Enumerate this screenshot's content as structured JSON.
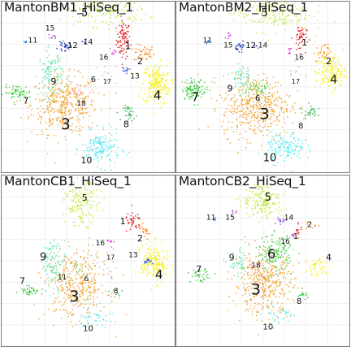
{
  "colors": {
    "1": "#e31a1c",
    "2": "#ff7f00",
    "3": "#f0a030",
    "4": "#f5ee1a",
    "5": "#c2e84a",
    "6": "#4dd34d",
    "7": "#3cc93c",
    "8": "#33b84a",
    "9": "#5fe3a8",
    "10": "#4fe8f0",
    "11": "#1f78d4",
    "12": "#1f3fb4",
    "13": "#2c52d9",
    "14": "#8d4fd9",
    "15": "#b43fd6",
    "16": "#e03fd6",
    "17": "#d8a8d0",
    "18": "#ff9f9f"
  },
  "chart_data": [
    {
      "type": "scatter",
      "title": "MantonBM1_HiSeq_1",
      "xlim": [
        0,
        100
      ],
      "ylim": [
        0,
        100
      ],
      "grid": true,
      "clusters": [
        {
          "id": "1",
          "x": 70,
          "y": 78,
          "n": 90,
          "sx": 2.0,
          "sy": 5.5
        },
        {
          "id": "2",
          "x": 82,
          "y": 70,
          "n": 40,
          "sx": 3.0,
          "sy": 2.5
        },
        {
          "id": "3",
          "x": 36,
          "y": 40,
          "n": 420,
          "sx": 9.5,
          "sy": 8.5
        },
        {
          "id": "4",
          "x": 89,
          "y": 52,
          "n": 240,
          "sx": 4.0,
          "sy": 6.0
        },
        {
          "id": "5",
          "x": 60,
          "y": 96,
          "n": 200,
          "sx": 12.0,
          "sy": 5.0
        },
        {
          "id": "7",
          "x": 9,
          "y": 47,
          "n": 60,
          "sx": 4.0,
          "sy": 2.2
        },
        {
          "id": "8",
          "x": 74,
          "y": 35,
          "n": 35,
          "sx": 2.0,
          "sy": 2.2
        },
        {
          "id": "9",
          "x": 28,
          "y": 58,
          "n": 110,
          "sx": 3.5,
          "sy": 7.0
        },
        {
          "id": "10",
          "x": 57,
          "y": 14,
          "n": 160,
          "sx": 5.5,
          "sy": 5.0
        },
        {
          "id": "11",
          "x": 14,
          "y": 77,
          "n": 5,
          "sx": 0.6,
          "sy": 0.5
        },
        {
          "id": "12",
          "x": 36,
          "y": 74,
          "n": 30,
          "sx": 1.8,
          "sy": 1.2
        },
        {
          "id": "13",
          "x": 71,
          "y": 60,
          "n": 12,
          "sx": 1.2,
          "sy": 1.0
        },
        {
          "id": "14",
          "x": 48,
          "y": 77,
          "n": 10,
          "sx": 1.5,
          "sy": 1.0
        },
        {
          "id": "15",
          "x": 30,
          "y": 80,
          "n": 8,
          "sx": 1.0,
          "sy": 0.8
        },
        {
          "id": "16",
          "x": 64,
          "y": 71,
          "n": 10,
          "sx": 1.0,
          "sy": 1.0
        },
        {
          "id": "17",
          "x": 60,
          "y": 58,
          "n": 10,
          "sx": 3.0,
          "sy": 3.0
        },
        {
          "id": "18",
          "x": 44,
          "y": 48,
          "n": 18,
          "sx": 2.0,
          "sy": 2.0
        }
      ],
      "labels": [
        {
          "text": "1",
          "x": 73,
          "y": 74,
          "size": 12
        },
        {
          "text": "2",
          "x": 80,
          "y": 65,
          "size": 11
        },
        {
          "text": "3",
          "x": 37,
          "y": 28,
          "size": 19
        },
        {
          "text": "4",
          "x": 90,
          "y": 45,
          "size": 15
        },
        {
          "text": "5",
          "x": 48,
          "y": 93,
          "size": 13
        },
        {
          "text": "6",
          "x": 53,
          "y": 54,
          "size": 10
        },
        {
          "text": "7",
          "x": 14,
          "y": 42,
          "size": 11
        },
        {
          "text": "8",
          "x": 72,
          "y": 28,
          "size": 11
        },
        {
          "text": "9",
          "x": 30,
          "y": 53,
          "size": 11
        },
        {
          "text": "10",
          "x": 49,
          "y": 7,
          "size": 11
        },
        {
          "text": "11",
          "x": 18,
          "y": 77,
          "size": 9
        },
        {
          "text": "12",
          "x": 41,
          "y": 74,
          "size": 10
        },
        {
          "text": "13",
          "x": 77,
          "y": 56,
          "size": 9
        },
        {
          "text": "14",
          "x": 50,
          "y": 76,
          "size": 9
        },
        {
          "text": "15",
          "x": 28,
          "y": 84,
          "size": 9
        },
        {
          "text": "16",
          "x": 59,
          "y": 67,
          "size": 9
        },
        {
          "text": "17",
          "x": 61,
          "y": 53,
          "size": 8
        },
        {
          "text": "18",
          "x": 46,
          "y": 40,
          "size": 9
        }
      ]
    },
    {
      "type": "scatter",
      "title": "MantonBM2_HiSeq_1",
      "xlim": [
        0,
        100
      ],
      "ylim": [
        0,
        100
      ],
      "grid": true,
      "clusters": [
        {
          "id": "1",
          "x": 71,
          "y": 79,
          "n": 50,
          "sx": 2.0,
          "sy": 4.0
        },
        {
          "id": "2",
          "x": 84,
          "y": 70,
          "n": 30,
          "sx": 2.5,
          "sy": 2.5
        },
        {
          "id": "3",
          "x": 46,
          "y": 39,
          "n": 460,
          "sx": 10.0,
          "sy": 9.0
        },
        {
          "id": "4",
          "x": 89,
          "y": 59,
          "n": 180,
          "sx": 4.5,
          "sy": 5.0
        },
        {
          "id": "5",
          "x": 55,
          "y": 94,
          "n": 220,
          "sx": 11.0,
          "sy": 5.5
        },
        {
          "id": "6",
          "x": 48,
          "y": 50,
          "n": 40,
          "sx": 3.0,
          "sy": 2.0
        },
        {
          "id": "7",
          "x": 10,
          "y": 49,
          "n": 110,
          "sx": 3.5,
          "sy": 3.0
        },
        {
          "id": "8",
          "x": 77,
          "y": 36,
          "n": 30,
          "sx": 2.0,
          "sy": 2.0
        },
        {
          "id": "9",
          "x": 37,
          "y": 55,
          "n": 60,
          "sx": 3.0,
          "sy": 5.0
        },
        {
          "id": "10",
          "x": 63,
          "y": 15,
          "n": 140,
          "sx": 5.5,
          "sy": 4.5
        },
        {
          "id": "11",
          "x": 18,
          "y": 77,
          "n": 5,
          "sx": 0.6,
          "sy": 0.5
        },
        {
          "id": "12",
          "x": 37,
          "y": 74,
          "n": 25,
          "sx": 1.5,
          "sy": 1.2
        },
        {
          "id": "14",
          "x": 46,
          "y": 74,
          "n": 6,
          "sx": 1.0,
          "sy": 0.8
        },
        {
          "id": "15",
          "x": 30,
          "y": 80,
          "n": 8,
          "sx": 1.0,
          "sy": 0.8
        },
        {
          "id": "16",
          "x": 65,
          "y": 71,
          "n": 8,
          "sx": 1.0,
          "sy": 1.0
        },
        {
          "id": "17",
          "x": 70,
          "y": 58,
          "n": 10,
          "sx": 3.0,
          "sy": 3.0
        }
      ],
      "labels": [
        {
          "text": "1",
          "x": 74,
          "y": 76,
          "size": 11
        },
        {
          "text": "2",
          "x": 88,
          "y": 65,
          "size": 11
        },
        {
          "text": "3",
          "x": 51,
          "y": 34,
          "size": 19
        },
        {
          "text": "4",
          "x": 91,
          "y": 54,
          "size": 14
        },
        {
          "text": "5",
          "x": 51,
          "y": 93,
          "size": 13
        },
        {
          "text": "6",
          "x": 47,
          "y": 43,
          "size": 10
        },
        {
          "text": "7",
          "x": 11,
          "y": 44,
          "size": 15
        },
        {
          "text": "8",
          "x": 72,
          "y": 27,
          "size": 10
        },
        {
          "text": "9",
          "x": 31,
          "y": 49,
          "size": 11
        },
        {
          "text": "10",
          "x": 54,
          "y": 8,
          "size": 13
        },
        {
          "text": "11",
          "x": 18,
          "y": 77,
          "size": 9
        },
        {
          "text": "12",
          "x": 43,
          "y": 74,
          "size": 10
        },
        {
          "text": "14",
          "x": 50,
          "y": 74,
          "size": 9
        },
        {
          "text": "15",
          "x": 30,
          "y": 74,
          "size": 9
        },
        {
          "text": "16",
          "x": 71,
          "y": 67,
          "size": 9
        },
        {
          "text": "17",
          "x": 69,
          "y": 53,
          "size": 8
        }
      ]
    },
    {
      "type": "scatter",
      "title": "MantonCB1_HiSeq_1",
      "xlim": [
        0,
        100
      ],
      "ylim": [
        0,
        100
      ],
      "grid": true,
      "clusters": [
        {
          "id": "1",
          "x": 76,
          "y": 73,
          "n": 40,
          "sx": 2.5,
          "sy": 3.0
        },
        {
          "id": "2",
          "x": 82,
          "y": 67,
          "n": 20,
          "sx": 2.0,
          "sy": 2.0
        },
        {
          "id": "3",
          "x": 43,
          "y": 36,
          "n": 380,
          "sx": 9.0,
          "sy": 10.0
        },
        {
          "id": "4",
          "x": 88,
          "y": 49,
          "n": 200,
          "sx": 4.0,
          "sy": 5.5
        },
        {
          "id": "5",
          "x": 46,
          "y": 84,
          "n": 170,
          "sx": 5.0,
          "sy": 6.0
        },
        {
          "id": "6",
          "x": 44,
          "y": 47,
          "n": 10,
          "sx": 2.0,
          "sy": 2.0
        },
        {
          "id": "7",
          "x": 16,
          "y": 33,
          "n": 40,
          "sx": 3.0,
          "sy": 1.5
        },
        {
          "id": "8",
          "x": 66,
          "y": 30,
          "n": 8,
          "sx": 2.0,
          "sy": 2.0
        },
        {
          "id": "9",
          "x": 30,
          "y": 49,
          "n": 110,
          "sx": 3.5,
          "sy": 7.0
        },
        {
          "id": "10",
          "x": 54,
          "y": 18,
          "n": 40,
          "sx": 5.0,
          "sy": 4.0
        },
        {
          "id": "13",
          "x": 84,
          "y": 50,
          "n": 15,
          "sx": 1.5,
          "sy": 1.0
        },
        {
          "id": "16",
          "x": 63,
          "y": 62,
          "n": 10,
          "sx": 1.2,
          "sy": 1.2
        },
        {
          "id": "17",
          "x": 60,
          "y": 47,
          "n": 10,
          "sx": 3.0,
          "sy": 3.0
        }
      ],
      "labels": [
        {
          "text": "1",
          "x": 70,
          "y": 73,
          "size": 11
        },
        {
          "text": "2",
          "x": 80,
          "y": 63,
          "size": 11
        },
        {
          "text": "3",
          "x": 42,
          "y": 29,
          "size": 19
        },
        {
          "text": "4",
          "x": 91,
          "y": 42,
          "size": 15
        },
        {
          "text": "5",
          "x": 48,
          "y": 87,
          "size": 11
        },
        {
          "text": "6",
          "x": 49,
          "y": 39,
          "size": 9
        },
        {
          "text": "7",
          "x": 12,
          "y": 38,
          "size": 11
        },
        {
          "text": "8",
          "x": 66,
          "y": 32,
          "size": 9
        },
        {
          "text": "9",
          "x": 24,
          "y": 52,
          "size": 13
        },
        {
          "text": "10",
          "x": 50,
          "y": 10,
          "size": 10
        },
        {
          "text": "11",
          "x": 35,
          "y": 40,
          "size": 9
        },
        {
          "text": "13",
          "x": 76,
          "y": 53,
          "size": 9
        },
        {
          "text": "16",
          "x": 57,
          "y": 60,
          "size": 9
        },
        {
          "text": "17",
          "x": 63,
          "y": 52,
          "size": 8
        }
      ]
    },
    {
      "type": "scatter",
      "title": "MantonCB2_HiSeq_1",
      "xlim": [
        0,
        100
      ],
      "ylim": [
        0,
        100
      ],
      "grid": true,
      "clusters": [
        {
          "id": "1",
          "x": 70,
          "y": 68,
          "n": 12,
          "sx": 1.5,
          "sy": 2.5
        },
        {
          "id": "2",
          "x": 78,
          "y": 71,
          "n": 8,
          "sx": 2.0,
          "sy": 1.5
        },
        {
          "id": "3",
          "x": 50,
          "y": 37,
          "n": 400,
          "sx": 8.5,
          "sy": 9.0
        },
        {
          "id": "4",
          "x": 82,
          "y": 46,
          "n": 50,
          "sx": 4.0,
          "sy": 4.0
        },
        {
          "id": "5",
          "x": 50,
          "y": 86,
          "n": 200,
          "sx": 6.0,
          "sy": 5.5
        },
        {
          "id": "6",
          "x": 57,
          "y": 55,
          "n": 160,
          "sx": 5.0,
          "sy": 5.0
        },
        {
          "id": "7",
          "x": 13,
          "y": 42,
          "n": 40,
          "sx": 2.5,
          "sy": 2.0
        },
        {
          "id": "8",
          "x": 73,
          "y": 30,
          "n": 15,
          "sx": 2.0,
          "sy": 1.5
        },
        {
          "id": "9",
          "x": 36,
          "y": 48,
          "n": 50,
          "sx": 3.0,
          "sy": 4.0
        },
        {
          "id": "10",
          "x": 60,
          "y": 18,
          "n": 30,
          "sx": 5.0,
          "sy": 3.5
        },
        {
          "id": "11",
          "x": 22,
          "y": 75,
          "n": 4,
          "sx": 0.6,
          "sy": 0.5
        },
        {
          "id": "14",
          "x": 60,
          "y": 74,
          "n": 15,
          "sx": 1.5,
          "sy": 1.0
        },
        {
          "id": "15",
          "x": 33,
          "y": 79,
          "n": 6,
          "sx": 1.0,
          "sy": 0.8
        },
        {
          "id": "16",
          "x": 67,
          "y": 65,
          "n": 6,
          "sx": 1.0,
          "sy": 1.0
        },
        {
          "id": "18",
          "x": 46,
          "y": 46,
          "n": 15,
          "sx": 2.0,
          "sy": 2.0
        }
      ],
      "labels": [
        {
          "text": "1",
          "x": 69,
          "y": 64,
          "size": 10
        },
        {
          "text": "2",
          "x": 77,
          "y": 71,
          "size": 10
        },
        {
          "text": "3",
          "x": 46,
          "y": 33,
          "size": 19
        },
        {
          "text": "4",
          "x": 88,
          "y": 52,
          "size": 11
        },
        {
          "text": "5",
          "x": 53,
          "y": 87,
          "size": 13
        },
        {
          "text": "6",
          "x": 55,
          "y": 54,
          "size": 16
        },
        {
          "text": "7",
          "x": 13,
          "y": 45,
          "size": 11
        },
        {
          "text": "8",
          "x": 71,
          "y": 26,
          "size": 10
        },
        {
          "text": "9",
          "x": 32,
          "y": 52,
          "size": 11
        },
        {
          "text": "10",
          "x": 53,
          "y": 11,
          "size": 10
        },
        {
          "text": "11",
          "x": 20,
          "y": 75,
          "size": 9
        },
        {
          "text": "14",
          "x": 65,
          "y": 75,
          "size": 9
        },
        {
          "text": "15",
          "x": 31,
          "y": 75,
          "size": 9
        },
        {
          "text": "16",
          "x": 63,
          "y": 61,
          "size": 9
        },
        {
          "text": "18",
          "x": 46,
          "y": 47,
          "size": 9
        }
      ]
    }
  ]
}
